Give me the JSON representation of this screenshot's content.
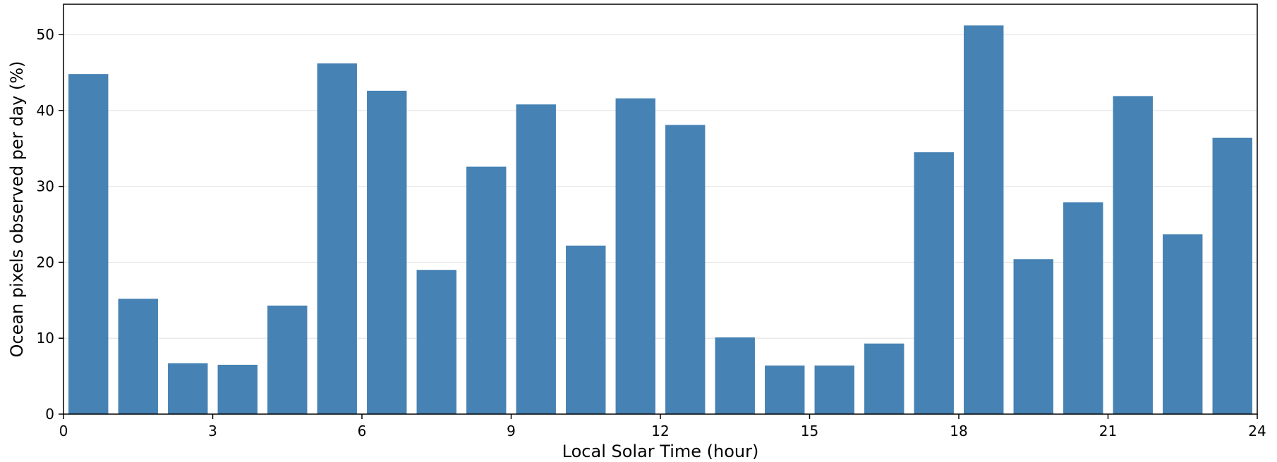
{
  "chart_data": {
    "type": "bar",
    "xlabel": "Local Solar Time (hour)",
    "ylabel": "Ocean pixels observed per day (%)",
    "x": [
      0.5,
      1.5,
      2.5,
      3.5,
      4.5,
      5.5,
      6.5,
      7.5,
      8.5,
      9.5,
      10.5,
      11.5,
      12.5,
      13.5,
      14.5,
      15.5,
      16.5,
      17.5,
      18.5,
      19.5,
      20.5,
      21.5,
      22.5,
      23.5
    ],
    "values": [
      44.8,
      15.2,
      6.7,
      6.5,
      14.3,
      46.2,
      42.6,
      19.0,
      32.6,
      40.8,
      22.2,
      41.6,
      38.1,
      10.1,
      6.4,
      6.4,
      9.3,
      34.5,
      51.2,
      20.4,
      27.9,
      41.9,
      23.7,
      36.4
    ],
    "bar_width": 0.8,
    "xlim": [
      0,
      24
    ],
    "ylim": [
      0,
      54
    ],
    "xticks": [
      0,
      3,
      6,
      9,
      12,
      15,
      18,
      21,
      24
    ],
    "yticks": [
      0,
      10,
      20,
      30,
      40,
      50
    ],
    "grid": "horizontal",
    "legend": "none",
    "colors": {
      "bar": "#4682b4",
      "grid": "#e6e6e6",
      "axis": "#000000"
    }
  }
}
